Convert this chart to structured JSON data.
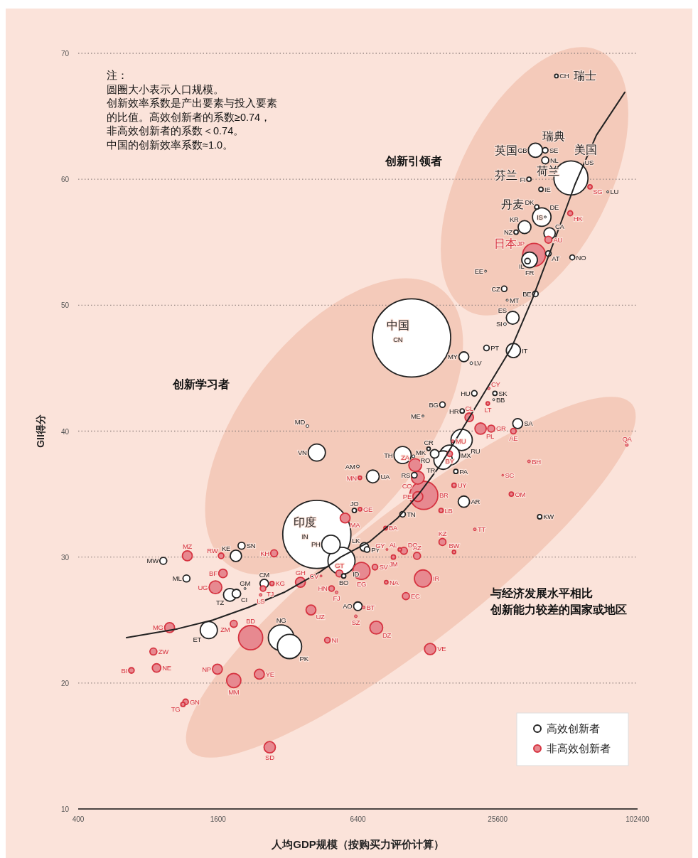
{
  "chart_data": {
    "type": "bubble",
    "xlabel": "人均GDP规模（按购买力评价计算）",
    "ylabel": "GII得分",
    "log": "x",
    "grid": "y",
    "legend": "bottom right",
    "xlim": [
      400,
      102400
    ],
    "xticks": [
      400,
      1600,
      6400,
      25600,
      102400
    ],
    "ylim": [
      10,
      70
    ],
    "yticks": [
      10,
      20,
      30,
      40,
      50,
      60,
      70
    ],
    "series": [
      {
        "name": "高效创新者",
        "color": "#222222",
        "x": [
          45800,
          37200,
          41000,
          41000,
          52900,
          34900,
          76200,
          39300,
          37700,
          39600,
          41000,
          33400,
          30700,
          42800,
          42300,
          35100,
          34400,
          53600,
          22700,
          27300,
          37200,
          28100,
          29700,
          27500,
          10900,
          22900,
          29900,
          18300,
          19700,
          20300,
          24900,
          24600,
          14800,
          18000,
          12200,
          31200,
          17900,
          12900,
          13700,
          15900,
          14900,
          16900,
          11200,
          3880,
          4260,
          9970,
          11100,
          6400,
          7420,
          18300,
          6180,
          9970,
          4260,
          4900,
          5440,
          5560,
          6820,
          7010,
          6400,
          38800,
          1910,
          2020,
          930,
          1170,
          2090,
          2530,
          1800,
          1920,
          1460,
          2990,
          3250
        ],
        "values": [
          68.2,
          62.3,
          62.3,
          61.5,
          60.1,
          60.0,
          59.0,
          59.2,
          57.8,
          57.0,
          57.0,
          56.2,
          55.8,
          55.7,
          54.1,
          53.6,
          53.5,
          53.8,
          52.7,
          51.3,
          50.9,
          50.4,
          49.0,
          48.5,
          47.4,
          46.6,
          46.4,
          45.9,
          45.4,
          43.0,
          43.0,
          42.5,
          42.1,
          41.6,
          41.2,
          40.6,
          39.3,
          38.6,
          38.2,
          38.1,
          37.7,
          36.8,
          36.5,
          40.4,
          38.3,
          38.1,
          38.0,
          37.2,
          36.4,
          34.4,
          33.7,
          33.4,
          31.8,
          31.0,
          29.7,
          28.5,
          30.8,
          30.6,
          26.1,
          33.2,
          30.1,
          30.9,
          29.7,
          28.3,
          27.5,
          27.9,
          27.0,
          27.1,
          24.2,
          23.6,
          22.9
        ],
        "sizes": [
          0.002,
          0.033,
          0.005,
          0.008,
          0.19,
          0.003,
          0.0007,
          0.003,
          0.003,
          0.056,
          0.0007,
          0.027,
          0.003,
          0.021,
          0.005,
          0.04,
          0.005,
          0.004,
          0.0007,
          0.005,
          0.005,
          0.0007,
          0.027,
          0.0013,
          1,
          0.005,
          0.033,
          0.016,
          0.0013,
          0.005,
          0.003,
          0.0007,
          0.005,
          0.003,
          0.0007,
          0.016,
          0.074,
          0.002,
          0.012,
          0.065,
          0.056,
          0.003,
          0.005,
          0.0013,
          0.048,
          0.048,
          0.0013,
          0.0013,
          0.027,
          0.021,
          0.003,
          0.005,
          0.76,
          0.056,
          0.12,
          0.003,
          0.012,
          0.005,
          0.012,
          0.003,
          0.021,
          0.008,
          0.008,
          0.008,
          0.0007,
          0.012,
          0.027,
          0.012,
          0.048,
          0.107,
          0.096
        ]
      },
      {
        "name": "非高效创新者",
        "color": "#d63340",
        "x": [
          63900,
          52500,
          42300,
          36700,
          23400,
          23200,
          19300,
          21600,
          24000,
          29900,
          92100,
          16400,
          15900,
          16600,
          34900,
          26900,
          29300,
          11300,
          11600,
          12300,
          11600,
          6530,
          14600,
          5640,
          6540,
          5330,
          8420,
          14800,
          20400,
          8540,
          9700,
          10100,
          11500,
          16600,
          9100,
          7580,
          6630,
          12200,
          8480,
          10300,
          4930,
          5180,
          6770,
          6270,
          4020,
          3620,
          4440,
          7680,
          13100,
          4730,
          1180,
          1650,
          2790,
          1680,
          1560,
          2730,
          2500,
          2440,
          990,
          1870,
          2210,
          843,
          870,
          678,
          1590,
          1870,
          2410,
          1160,
          1130,
          2670
        ],
        "values": [
          59.4,
          57.3,
          55.2,
          54.0,
          43.4,
          42.2,
          41.1,
          40.2,
          40.2,
          40.0,
          38.9,
          39.2,
          38.2,
          35.7,
          37.6,
          36.5,
          35.0,
          37.3,
          36.3,
          34.9,
          34.8,
          36.3,
          33.7,
          33.1,
          33.8,
          28.7,
          32.3,
          31.2,
          32.2,
          30.6,
          30.6,
          30.5,
          30.1,
          30.4,
          30.0,
          29.2,
          28.9,
          28.3,
          28.0,
          26.9,
          27.5,
          27.2,
          26.0,
          25.3,
          25.8,
          28.0,
          28.5,
          24.4,
          22.7,
          23.4,
          30.1,
          30.1,
          30.3,
          28.7,
          27.6,
          27.9,
          27.5,
          27.0,
          24.4,
          24.7,
          23.6,
          22.5,
          21.2,
          21.0,
          21.1,
          20.2,
          20.7,
          18.5,
          18.3,
          14.9
        ],
        "sizes": [
          0.003,
          0.004,
          0.008,
          0.085,
          0.0013,
          0.002,
          0.012,
          0.021,
          0.008,
          0.005,
          0.0013,
          0.0013,
          0.005,
          0.003,
          0.0013,
          0.0003,
          0.003,
          0.027,
          0.027,
          0.13,
          0.016,
          0.002,
          0.003,
          0.016,
          0.002,
          0.008,
          0.002,
          0.008,
          0.0013,
          0.0007,
          0.002,
          0.008,
          0.008,
          0.002,
          0.003,
          0.005,
          0.048,
          0.048,
          0.002,
          0.008,
          0.005,
          0.0013,
          0.0013,
          0.0013,
          0.016,
          0.016,
          0.0007,
          0.027,
          0.021,
          0.005,
          0.016,
          0.005,
          0.008,
          0.012,
          0.027,
          0.003,
          0.005,
          0.0013,
          0.016,
          0.008,
          0.096,
          0.008,
          0.012,
          0.005,
          0.016,
          0.033,
          0.016,
          0.005,
          0.003,
          0.021
        ]
      },
      {
        "type": "line",
        "color": "#222222",
        "x": [
          646,
          1070,
          1520,
          2160,
          3080,
          4380,
          5400,
          7160,
          9490,
          11700,
          14500,
          19200,
          23700,
          29300,
          36100,
          44600,
          55100,
          68100,
          90200
        ],
        "values": [
          23.6,
          24.3,
          25.0,
          26.0,
          27.2,
          28.8,
          30.0,
          31.2,
          33.1,
          35.0,
          37.3,
          41.0,
          43.8,
          46.6,
          50.5,
          55.0,
          59.6,
          63.5,
          66.9
        ]
      }
    ],
    "annotations": [
      "注：",
      "圆圈大小表示人口规模。",
      "创新效率系数是产出要素与投入要素",
      "的比值。高效创新者的系数≥0.74，",
      "非高效创新者的系数＜0.74。",
      "中国的创新效率系数≈1.0。",
      "创新引领者",
      "创新学习者",
      "与经济发展水平相比",
      "创新能力较差的国家或地区",
      {
        "text": "CH",
        "x": 45800,
        "y": 68.2
      },
      {
        "text": "GB",
        "x": 37200,
        "y": 62.3
      },
      {
        "text": "SE",
        "x": 41000,
        "y": 62.3
      },
      {
        "text": "NL",
        "x": 41000,
        "y": 61.5
      },
      {
        "text": "US",
        "x": 52900,
        "y": 60.1
      },
      {
        "text": "FI",
        "x": 34900,
        "y": 60.0
      },
      {
        "text": "LU",
        "x": 76200,
        "y": 59.0
      },
      {
        "text": "IE",
        "x": 39300,
        "y": 59.2
      },
      {
        "text": "DK",
        "x": 37700,
        "y": 57.8
      },
      {
        "text": "DE",
        "x": 39600,
        "y": 57.0
      },
      {
        "text": "IS",
        "x": 41000,
        "y": 57.0
      },
      {
        "text": "KR",
        "x": 33400,
        "y": 56.2
      },
      {
        "text": "NZ",
        "x": 30700,
        "y": 55.8
      },
      {
        "text": "CA",
        "x": 42800,
        "y": 55.7
      },
      {
        "text": "AT",
        "x": 42300,
        "y": 54.1
      },
      {
        "text": "FR",
        "x": 35100,
        "y": 53.6
      },
      {
        "text": "IL",
        "x": 34400,
        "y": 53.5
      },
      {
        "text": "NO",
        "x": 53600,
        "y": 53.8
      },
      {
        "text": "EE",
        "x": 22700,
        "y": 52.7
      },
      {
        "text": "CZ",
        "x": 27300,
        "y": 51.3
      },
      {
        "text": "BE",
        "x": 37200,
        "y": 50.9
      },
      {
        "text": "MT",
        "x": 28100,
        "y": 50.4
      },
      {
        "text": "ES",
        "x": 29700,
        "y": 49.0
      },
      {
        "text": "SI",
        "x": 27500,
        "y": 48.5
      },
      {
        "text": "CN",
        "x": 10900,
        "y": 47.4
      },
      {
        "text": "PT",
        "x": 22900,
        "y": 46.6
      },
      {
        "text": "IT",
        "x": 29900,
        "y": 46.4
      },
      {
        "text": "MY",
        "x": 18300,
        "y": 45.9
      },
      {
        "text": "LV",
        "x": 19700,
        "y": 45.4
      },
      {
        "text": "HU",
        "x": 20300,
        "y": 43.0
      },
      {
        "text": "SK",
        "x": 24900,
        "y": 43.0
      },
      {
        "text": "BB",
        "x": 24600,
        "y": 42.5
      },
      {
        "text": "BG",
        "x": 14800,
        "y": 42.1
      },
      {
        "text": "HR",
        "x": 18000,
        "y": 41.6
      },
      {
        "text": "ME",
        "x": 12200,
        "y": 41.2
      },
      {
        "text": "SA",
        "x": 31200,
        "y": 40.6
      },
      {
        "text": "RU",
        "x": 17900,
        "y": 39.3
      },
      {
        "text": "CR",
        "x": 12900,
        "y": 38.6
      },
      {
        "text": "RO",
        "x": 13700,
        "y": 38.2
      },
      {
        "text": "MX",
        "x": 15900,
        "y": 38.1
      },
      {
        "text": "TR",
        "x": 14900,
        "y": 37.7
      },
      {
        "text": "PA",
        "x": 16900,
        "y": 36.8
      },
      {
        "text": "RS",
        "x": 11200,
        "y": 36.5
      },
      {
        "text": "MD",
        "x": 3880,
        "y": 40.4
      },
      {
        "text": "VN",
        "x": 4260,
        "y": 38.3
      },
      {
        "text": "TH",
        "x": 9970,
        "y": 38.1
      },
      {
        "text": "MK",
        "x": 11100,
        "y": 38.0
      },
      {
        "text": "AM",
        "x": 6400,
        "y": 37.2
      },
      {
        "text": "UA",
        "x": 7420,
        "y": 36.4
      },
      {
        "text": "AR",
        "x": 18300,
        "y": 34.4
      },
      {
        "text": "JO",
        "x": 6180,
        "y": 33.7
      },
      {
        "text": "TN",
        "x": 9970,
        "y": 33.4
      },
      {
        "text": "IN",
        "x": 4260,
        "y": 31.8
      },
      {
        "text": "PH",
        "x": 4900,
        "y": 31.0
      },
      {
        "text": "ID",
        "x": 5440,
        "y": 29.7
      },
      {
        "text": "BO",
        "x": 5560,
        "y": 28.5
      },
      {
        "text": "LK",
        "x": 6820,
        "y": 30.8
      },
      {
        "text": "PY",
        "x": 7010,
        "y": 30.6
      },
      {
        "text": "AO",
        "x": 6400,
        "y": 26.1
      },
      {
        "text": "KW",
        "x": 38800,
        "y": 33.2
      },
      {
        "text": "KE",
        "x": 1910,
        "y": 30.1
      },
      {
        "text": "SN",
        "x": 2020,
        "y": 30.9
      },
      {
        "text": "MW",
        "x": 930,
        "y": 29.7
      },
      {
        "text": "ML",
        "x": 1170,
        "y": 28.3
      },
      {
        "text": "GM",
        "x": 2090,
        "y": 27.5
      },
      {
        "text": "CM",
        "x": 2530,
        "y": 27.9
      },
      {
        "text": "TZ",
        "x": 1800,
        "y": 27.0
      },
      {
        "text": "CI",
        "x": 1920,
        "y": 27.1
      },
      {
        "text": "ET",
        "x": 1460,
        "y": 24.2
      },
      {
        "text": "NG",
        "x": 2990,
        "y": 23.6
      },
      {
        "text": "PK",
        "x": 3250,
        "y": 22.9
      },
      {
        "text": "SG",
        "x": 63900,
        "y": 59.4
      },
      {
        "text": "HK",
        "x": 52500,
        "y": 57.3
      },
      {
        "text": "AU",
        "x": 42300,
        "y": 55.2
      },
      {
        "text": "JP",
        "x": 36700,
        "y": 54.0
      },
      {
        "text": "CY",
        "x": 23400,
        "y": 43.4
      },
      {
        "text": "LT",
        "x": 23200,
        "y": 42.2
      },
      {
        "text": "CL",
        "x": 19300,
        "y": 41.1
      },
      {
        "text": "PL",
        "x": 21600,
        "y": 40.2
      },
      {
        "text": "GR",
        "x": 24000,
        "y": 40.2
      },
      {
        "text": "AE",
        "x": 29900,
        "y": 40.0
      },
      {
        "text": "QA",
        "x": 92100,
        "y": 38.9
      },
      {
        "text": "MU",
        "x": 16400,
        "y": 39.2
      },
      {
        "text": "BY",
        "x": 15900,
        "y": 38.2
      },
      {
        "text": "UY",
        "x": 16600,
        "y": 35.7
      },
      {
        "text": "BH",
        "x": 34900,
        "y": 37.6
      },
      {
        "text": "SC",
        "x": 26900,
        "y": 36.5
      },
      {
        "text": "OM",
        "x": 29300,
        "y": 35.0
      },
      {
        "text": "ZA",
        "x": 11300,
        "y": 37.3
      },
      {
        "text": "CO",
        "x": 11600,
        "y": 36.3
      },
      {
        "text": "BR",
        "x": 12300,
        "y": 34.9
      },
      {
        "text": "PE",
        "x": 11600,
        "y": 34.8
      },
      {
        "text": "MN",
        "x": 6530,
        "y": 36.3
      },
      {
        "text": "LB",
        "x": 14600,
        "y": 33.7
      },
      {
        "text": "MA",
        "x": 5640,
        "y": 33.1
      },
      {
        "text": "GE",
        "x": 6540,
        "y": 33.8
      },
      {
        "text": "GT",
        "x": 5330,
        "y": 28.7
      },
      {
        "text": "BA",
        "x": 8420,
        "y": 32.3
      },
      {
        "text": "KZ",
        "x": 14800,
        "y": 31.2
      },
      {
        "text": "TT",
        "x": 20400,
        "y": 32.2
      },
      {
        "text": "GY",
        "x": 8540,
        "y": 30.6
      },
      {
        "text": "AL",
        "x": 9700,
        "y": 30.6
      },
      {
        "text": "DO",
        "x": 10100,
        "y": 30.5
      },
      {
        "text": "AZ",
        "x": 11500,
        "y": 30.1
      },
      {
        "text": "BW",
        "x": 16600,
        "y": 30.4
      },
      {
        "text": "JM",
        "x": 9100,
        "y": 30.0
      },
      {
        "text": "SV",
        "x": 7580,
        "y": 29.2
      },
      {
        "text": "EG",
        "x": 6630,
        "y": 28.9
      },
      {
        "text": "IR",
        "x": 12200,
        "y": 28.3
      },
      {
        "text": "NA",
        "x": 8480,
        "y": 28.0
      },
      {
        "text": "EC",
        "x": 10300,
        "y": 26.9
      },
      {
        "text": "HN",
        "x": 4930,
        "y": 27.5
      },
      {
        "text": "FJ",
        "x": 5180,
        "y": 27.2
      },
      {
        "text": "BT",
        "x": 6770,
        "y": 26.0
      },
      {
        "text": "SZ",
        "x": 6270,
        "y": 25.3
      },
      {
        "text": "UZ",
        "x": 4020,
        "y": 25.8
      },
      {
        "text": "GH",
        "x": 3620,
        "y": 28.0
      },
      {
        "text": "CV",
        "x": 4440,
        "y": 28.5
      },
      {
        "text": "DZ",
        "x": 7680,
        "y": 24.4
      },
      {
        "text": "VE",
        "x": 13100,
        "y": 22.7
      },
      {
        "text": "NI",
        "x": 4730,
        "y": 23.4
      },
      {
        "text": "MZ",
        "x": 1180,
        "y": 30.1
      },
      {
        "text": "RW",
        "x": 1650,
        "y": 30.1
      },
      {
        "text": "KH",
        "x": 2790,
        "y": 30.3
      },
      {
        "text": "BF",
        "x": 1680,
        "y": 28.7
      },
      {
        "text": "UG",
        "x": 1560,
        "y": 27.6
      },
      {
        "text": "KG",
        "x": 2730,
        "y": 27.9
      },
      {
        "text": "TJ",
        "x": 2500,
        "y": 27.5
      },
      {
        "text": "LS",
        "x": 2440,
        "y": 27.0
      },
      {
        "text": "MG",
        "x": 990,
        "y": 24.4
      },
      {
        "text": "ZM",
        "x": 1870,
        "y": 24.7
      },
      {
        "text": "BD",
        "x": 2210,
        "y": 23.6
      },
      {
        "text": "ZW",
        "x": 843,
        "y": 22.5
      },
      {
        "text": "NE",
        "x": 870,
        "y": 21.2
      },
      {
        "text": "BI",
        "x": 678,
        "y": 21.0
      },
      {
        "text": "NP",
        "x": 1590,
        "y": 21.1
      },
      {
        "text": "MM",
        "x": 1870,
        "y": 20.2
      },
      {
        "text": "YE",
        "x": 2410,
        "y": 20.7
      },
      {
        "text": "GN",
        "x": 1160,
        "y": 18.5
      },
      {
        "text": "TG",
        "x": 1130,
        "y": 18.3
      },
      {
        "text": "SD",
        "x": 2670,
        "y": 14.9
      },
      {
        "text": "瑞士",
        "x": 45800,
        "y": 68.2
      },
      {
        "text": "英国",
        "x": 37200,
        "y": 62.3
      },
      {
        "text": "瑞典",
        "x": 41000,
        "y": 62.3
      },
      {
        "text": "美国",
        "x": 52900,
        "y": 60.1
      },
      {
        "text": "荷兰",
        "x": 41000,
        "y": 61.5
      },
      {
        "text": "芬兰",
        "x": 34900,
        "y": 60.0
      },
      {
        "text": "丹麦",
        "x": 37700,
        "y": 57.8
      },
      {
        "text": "日本",
        "x": 36700,
        "y": 54.0
      },
      {
        "text": "中国",
        "x": 10900,
        "y": 47.4
      },
      {
        "text": "印度",
        "x": 4260,
        "y": 31.8
      }
    ]
  }
}
